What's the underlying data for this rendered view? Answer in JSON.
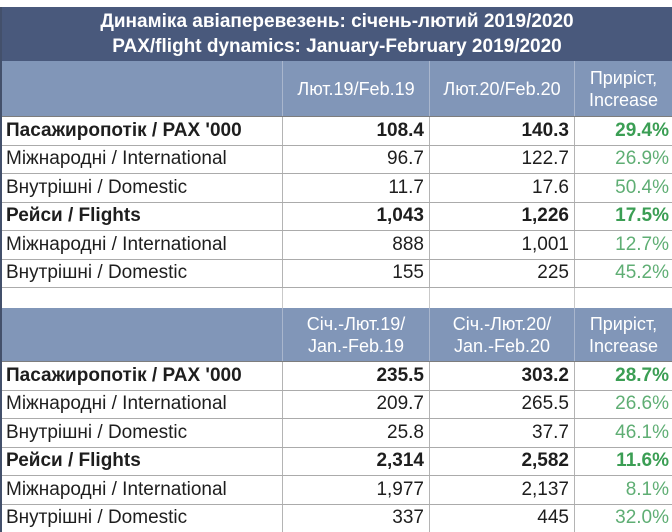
{
  "title": {
    "line1": "Динаміка авіаперевезень: січень-лютий 2019/2020",
    "line2": "PAX/flight dynamics: January-February 2019/2020"
  },
  "colors": {
    "title_band": "#49597c",
    "header_band": "#8196b8",
    "increase_green_bold": "#3b9e54",
    "increase_green_regular": "#5fae74"
  },
  "table_feb": {
    "header": {
      "col_prev": "Лют.19/Feb.19",
      "col_curr": "Лют.20/Feb.20",
      "col_increase_line1": "Приріст,",
      "col_increase_line2": "Increase"
    },
    "rows": [
      {
        "label": "Пасажиропотік / PAX '000",
        "prev": "108.4",
        "curr": "140.3",
        "increase": "29.4%"
      },
      {
        "label": "Міжнародні / International",
        "prev": "96.7",
        "curr": "122.7",
        "increase": "26.9%"
      },
      {
        "label": "Внутрішні / Domestic",
        "prev": "11.7",
        "curr": "17.6",
        "increase": "50.4%"
      },
      {
        "label": "Рейси / Flights",
        "prev": "1,043",
        "curr": "1,226",
        "increase": "17.5%"
      },
      {
        "label": "Міжнародні / International",
        "prev": "888",
        "curr": "1,001",
        "increase": "12.7%"
      },
      {
        "label": "Внутрішні / Domestic",
        "prev": "155",
        "curr": "225",
        "increase": "45.2%"
      }
    ]
  },
  "table_janfeb": {
    "header": {
      "col_prev_line1": "Січ.-Лют.19/",
      "col_prev_line2": "Jan.-Feb.19",
      "col_curr_line1": "Січ.-Лют.20/",
      "col_curr_line2": "Jan.-Feb.20",
      "col_increase_line1": "Приріст,",
      "col_increase_line2": "Increase"
    },
    "rows": [
      {
        "label": "Пасажиропотік / PAX '000",
        "prev": "235.5",
        "curr": "303.2",
        "increase": "28.7%"
      },
      {
        "label": "Міжнародні / International",
        "prev": "209.7",
        "curr": "265.5",
        "increase": "26.6%"
      },
      {
        "label": "Внутрішні / Domestic",
        "prev": "25.8",
        "curr": "37.7",
        "increase": "46.1%"
      },
      {
        "label": "Рейси / Flights",
        "prev": "2,314",
        "curr": "2,582",
        "increase": "11.6%"
      },
      {
        "label": "Міжнародні / International",
        "prev": "1,977",
        "curr": "2,137",
        "increase": "8.1%"
      },
      {
        "label": "Внутрішні / Domestic",
        "prev": "337",
        "curr": "445",
        "increase": "32.0%"
      }
    ]
  }
}
